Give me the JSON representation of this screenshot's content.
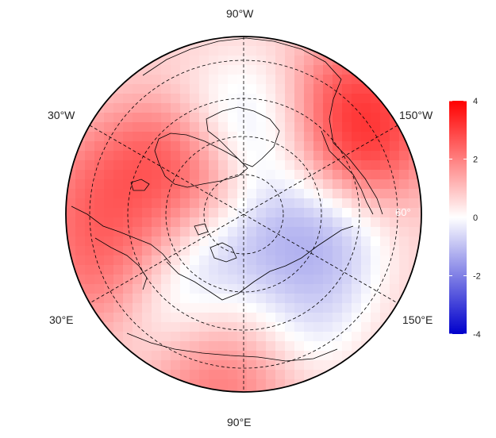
{
  "map": {
    "projection": "north-polar-stereographic",
    "longitude_labels": {
      "top": "90°W",
      "bottom": "90°E",
      "upper_left": "30°W",
      "upper_right": "150°W",
      "lower_left": "30°E",
      "lower_right": "150°E"
    },
    "latitude_label": "60°",
    "graticule": {
      "style": "dashed",
      "latitude_rings": 4,
      "meridians_deg": [
        30,
        90,
        150
      ]
    }
  },
  "colorbar": {
    "min": -4,
    "max": 4,
    "ticks": [
      "4",
      "2",
      "0",
      "-2",
      "-4"
    ],
    "colors": {
      "high": "#ff0000",
      "mid": "#ffffff",
      "low": "#0000cc"
    }
  },
  "anomaly_field": {
    "description_scale": "temperature-anomaly-like",
    "hotspots": [
      {
        "region": "northeast-pacific",
        "value": 3.0
      },
      {
        "region": "greenland-northeast-canada",
        "value": 2.6
      },
      {
        "region": "europe-west-russia",
        "value": 2.2
      },
      {
        "region": "central-siberia",
        "value": 2.8
      },
      {
        "region": "north-atlantic",
        "value": 2.0
      }
    ],
    "coldspots": [
      {
        "region": "arctic-ocean-east",
        "value": -1.4
      },
      {
        "region": "kara-sea",
        "value": -1.0
      },
      {
        "region": "west-siberia",
        "value": -1.5
      },
      {
        "region": "northern-canada",
        "value": -0.8
      },
      {
        "region": "east-siberia-bering",
        "value": -1.1
      }
    ]
  }
}
